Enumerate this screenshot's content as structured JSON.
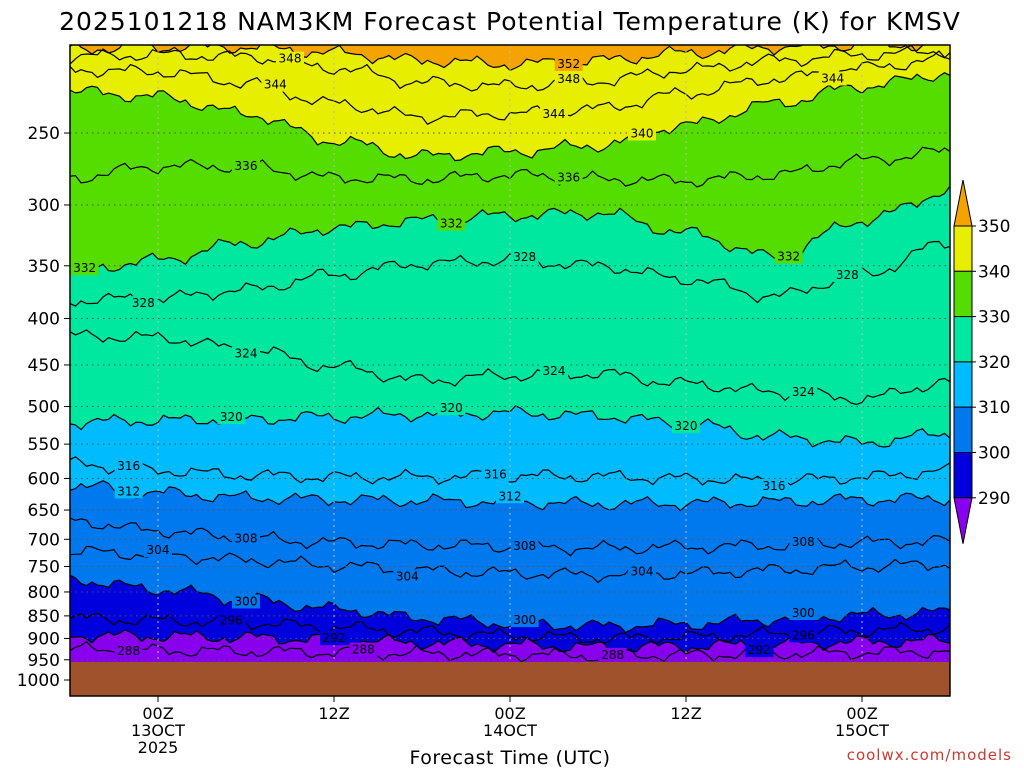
{
  "chart_data": {
    "type": "heatmap",
    "title": "2025101218 NAM3KM Forecast Potential Temperature (K) for KMSV",
    "xlabel": "Forecast Time (UTC)",
    "ylabel": "",
    "y_scale": "log-pressure",
    "ylim": [
      1000,
      200
    ],
    "y_ticks": [
      "250",
      "300",
      "350",
      "400",
      "450",
      "500",
      "550",
      "600",
      "650",
      "700",
      "750",
      "800",
      "850",
      "900",
      "950",
      "1000"
    ],
    "x_range_hours": [
      0,
      60
    ],
    "x_ticks": [
      {
        "hour": 6,
        "line1": "00Z",
        "line2": "13OCT",
        "line3": "2025"
      },
      {
        "hour": 18,
        "line1": "12Z",
        "line2": "",
        "line3": ""
      },
      {
        "hour": 30,
        "line1": "00Z",
        "line2": "14OCT",
        "line3": ""
      },
      {
        "hour": 42,
        "line1": "12Z",
        "line2": "",
        "line3": ""
      },
      {
        "hour": 54,
        "line1": "00Z",
        "line2": "15OCT",
        "line3": ""
      }
    ],
    "colorbar": {
      "ticks": [
        "350",
        "340",
        "330",
        "320",
        "310",
        "300",
        "290"
      ],
      "bins": [
        {
          "range": [
            350,
            360
          ],
          "color": "#f5a300"
        },
        {
          "range": [
            340,
            350
          ],
          "color": "#e8ee00"
        },
        {
          "range": [
            330,
            340
          ],
          "color": "#55dd00"
        },
        {
          "range": [
            320,
            330
          ],
          "color": "#00e8a0"
        },
        {
          "range": [
            310,
            320
          ],
          "color": "#00bcff"
        },
        {
          "range": [
            300,
            310
          ],
          "color": "#0078ee"
        },
        {
          "range": [
            290,
            300
          ],
          "color": "#0000dd"
        },
        {
          "range": [
            280,
            290
          ],
          "color": "#8800ee"
        }
      ]
    },
    "ground_color": "#a0522d",
    "hours": [
      0,
      6,
      12,
      18,
      24,
      30,
      36,
      42,
      48,
      54,
      60
    ],
    "isentropes": [
      {
        "theta": 288,
        "p": [
          925,
          928,
          930,
          932,
          935,
          937,
          940,
          938,
          935,
          933,
          930
        ]
      },
      {
        "theta": 292,
        "p": [
          893,
          895,
          898,
          903,
          910,
          915,
          920,
          918,
          913,
          908,
          905
        ]
      },
      {
        "theta": 296,
        "p": [
          855,
          860,
          865,
          875,
          885,
          893,
          900,
          897,
          890,
          882,
          877
        ]
      },
      {
        "theta": 300,
        "p": [
          775,
          795,
          815,
          835,
          855,
          866,
          872,
          868,
          858,
          848,
          842
        ]
      },
      {
        "theta": 304,
        "p": [
          722,
          728,
          738,
          748,
          758,
          763,
          766,
          763,
          757,
          750,
          745
        ]
      },
      {
        "theta": 308,
        "p": [
          668,
          685,
          698,
          706,
          710,
          713,
          716,
          714,
          711,
          706,
          703
        ]
      },
      {
        "theta": 312,
        "p": [
          610,
          622,
          630,
          633,
          635,
          637,
          640,
          639,
          637,
          633,
          631
        ]
      },
      {
        "theta": 316,
        "p": [
          578,
          588,
          595,
          598,
          598,
          596,
          597,
          600,
          604,
          598,
          588
        ]
      },
      {
        "theta": 320,
        "p": [
          520,
          518,
          516,
          513,
          510,
          508,
          512,
          522,
          540,
          548,
          535
        ]
      },
      {
        "theta": 324,
        "p": [
          418,
          420,
          432,
          452,
          468,
          462,
          460,
          472,
          482,
          490,
          470
        ]
      },
      {
        "theta": 328,
        "p": [
          382,
          380,
          372,
          358,
          348,
          345,
          350,
          362,
          378,
          358,
          330
        ]
      },
      {
        "theta": 332,
        "p": [
          355,
          345,
          330,
          318,
          312,
          308,
          306,
          322,
          342,
          312,
          290
        ]
      },
      {
        "theta": 336,
        "p": [
          280,
          272,
          272,
          280,
          281,
          278,
          281,
          282,
          278,
          268,
          262
        ]
      },
      {
        "theta": 340,
        "p": [
          225,
          228,
          238,
          255,
          265,
          262,
          258,
          245,
          232,
          222,
          215
        ]
      },
      {
        "theta": 344,
        "p": [
          213,
          214,
          220,
          232,
          240,
          238,
          235,
          226,
          218,
          212,
          207
        ]
      },
      {
        "theta": 348,
        "p": [
          206,
          205,
          206,
          212,
          220,
          222,
          219,
          213,
          208,
          205,
          203
        ]
      },
      {
        "theta": 352,
        "p": [
          202,
          201,
          201,
          204,
          208,
          210,
          208,
          204,
          201,
          200,
          200
        ]
      }
    ],
    "contour_labels": [
      {
        "theta": 348,
        "hour": 15.0
      },
      {
        "theta": 344,
        "hour": 14.0
      },
      {
        "theta": 352,
        "hour": 34.0
      },
      {
        "theta": 348,
        "hour": 34.0
      },
      {
        "theta": 344,
        "hour": 33.0
      },
      {
        "theta": 344,
        "hour": 52.0
      },
      {
        "theta": 340,
        "hour": 39.0
      },
      {
        "theta": 332,
        "hour": 49.0
      },
      {
        "theta": 336,
        "hour": 12.0
      },
      {
        "theta": 336,
        "hour": 34.0
      },
      {
        "theta": 332,
        "hour": 26.0
      },
      {
        "theta": 332,
        "hour": 1.0
      },
      {
        "theta": 328,
        "hour": 31.0
      },
      {
        "theta": 328,
        "hour": 53.0
      },
      {
        "theta": 328,
        "hour": 5.0
      },
      {
        "theta": 324,
        "hour": 12.0
      },
      {
        "theta": 324,
        "hour": 33.0
      },
      {
        "theta": 324,
        "hour": 50.0
      },
      {
        "theta": 320,
        "hour": 11.0
      },
      {
        "theta": 320,
        "hour": 26.0
      },
      {
        "theta": 320,
        "hour": 42.0
      },
      {
        "theta": 316,
        "hour": 4.0
      },
      {
        "theta": 316,
        "hour": 29.0
      },
      {
        "theta": 316,
        "hour": 48.0
      },
      {
        "theta": 312,
        "hour": 4.0
      },
      {
        "theta": 312,
        "hour": 30.0
      },
      {
        "theta": 308,
        "hour": 12.0
      },
      {
        "theta": 308,
        "hour": 31.0
      },
      {
        "theta": 308,
        "hour": 50.0
      },
      {
        "theta": 304,
        "hour": 6.0
      },
      {
        "theta": 304,
        "hour": 23.0
      },
      {
        "theta": 304,
        "hour": 39.0
      },
      {
        "theta": 300,
        "hour": 12.0
      },
      {
        "theta": 300,
        "hour": 31.0
      },
      {
        "theta": 300,
        "hour": 50.0
      },
      {
        "theta": 296,
        "hour": 11.0
      },
      {
        "theta": 296,
        "hour": 50.0
      },
      {
        "theta": 292,
        "hour": 18.0
      },
      {
        "theta": 292,
        "hour": 47.0
      },
      {
        "theta": 288,
        "hour": 20.0
      },
      {
        "theta": 288,
        "hour": 4.0
      },
      {
        "theta": 288,
        "hour": 37.0
      }
    ]
  },
  "credit": "coolwx.com/models"
}
